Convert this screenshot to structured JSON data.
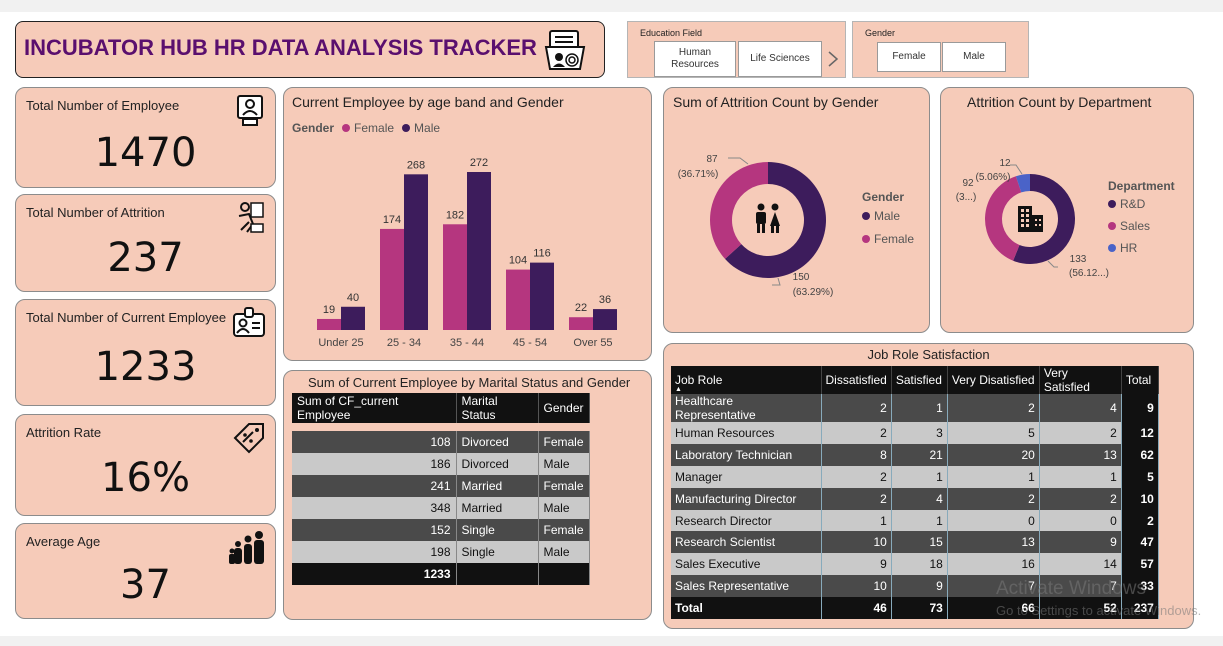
{
  "header": {
    "title": "INCUBATOR HUB HR DATA ANALYSIS TRACKER",
    "icon": "hr-folder-fingerprint-icon"
  },
  "slicers": {
    "education": {
      "title": "Education Field",
      "options": [
        "Human Resources",
        "Life Sciences"
      ],
      "more_icon": "chevron-right-icon"
    },
    "gender": {
      "title": "Gender",
      "options": [
        "Female",
        "Male"
      ]
    }
  },
  "kpis": {
    "total_employee": {
      "label": "Total Number of Employee",
      "value": "1470",
      "icon": "employee-badge-icon"
    },
    "total_attrition": {
      "label": "Total Number of Attrition",
      "value": "237",
      "icon": "leaving-person-icon"
    },
    "current_employee": {
      "label": "Total Number of Current Employee",
      "value": "1233",
      "icon": "id-card-icon"
    },
    "attrition_rate": {
      "label": "Attrition Rate",
      "value": "16%",
      "icon": "percent-tag-icon"
    },
    "average_age": {
      "label": "Average Age",
      "value": "37",
      "icon": "family-icon"
    }
  },
  "age_chart": {
    "title": "Current Employee by age band and Gender",
    "legend_title": "Gender",
    "legend": [
      "Female",
      "Male"
    ]
  },
  "gender_donut": {
    "title": "Sum of Attrition Count by Gender",
    "legend_title": "Gender",
    "legend": [
      "Male",
      "Female"
    ],
    "labels": {
      "female_value": "87",
      "female_pct": "(36.71%)",
      "male_value": "150",
      "male_pct": "(63.29%)"
    }
  },
  "dept_donut": {
    "title": "Attrition Count by Department",
    "legend_title": "Department",
    "legend": [
      "R&D",
      "Sales",
      "HR"
    ],
    "labels": {
      "hr_value": "12",
      "hr_pct": "(5.06%)",
      "sales_value": "92",
      "sales_pct": "(3...)",
      "rd_value": "133",
      "rd_pct": "(56.12...)"
    }
  },
  "marital_table": {
    "title": "Sum of Current Employee by Marital Status and Gender",
    "headers": [
      "Sum of CF_current Employee",
      "Marital Status",
      "Gender"
    ],
    "rows": [
      [
        "108",
        "Divorced",
        "Female"
      ],
      [
        "186",
        "Divorced",
        "Male"
      ],
      [
        "241",
        "Married",
        "Female"
      ],
      [
        "348",
        "Married",
        "Male"
      ],
      [
        "152",
        "Single",
        "Female"
      ],
      [
        "198",
        "Single",
        "Male"
      ]
    ],
    "total": "1233"
  },
  "job_table": {
    "title": "Job Role Satisfaction",
    "headers": [
      "Job Role",
      "Dissatisfied",
      "Satisfied",
      "Very Disatisfied",
      "Very Satisfied",
      "Total"
    ],
    "rows": [
      [
        "Healthcare Representative",
        "2",
        "1",
        "2",
        "4",
        "9"
      ],
      [
        "Human Resources",
        "2",
        "3",
        "5",
        "2",
        "12"
      ],
      [
        "Laboratory Technician",
        "8",
        "21",
        "20",
        "13",
        "62"
      ],
      [
        "Manager",
        "2",
        "1",
        "1",
        "1",
        "5"
      ],
      [
        "Manufacturing Director",
        "2",
        "4",
        "2",
        "2",
        "10"
      ],
      [
        "Research Director",
        "1",
        "1",
        "0",
        "0",
        "2"
      ],
      [
        "Research Scientist",
        "10",
        "15",
        "13",
        "9",
        "47"
      ],
      [
        "Sales Executive",
        "9",
        "18",
        "16",
        "14",
        "57"
      ],
      [
        "Sales Representative",
        "10",
        "9",
        "7",
        "7",
        "33"
      ]
    ],
    "total_row": [
      "Total",
      "46",
      "73",
      "66",
      "52",
      "237"
    ]
  },
  "watermark": {
    "line1": "Activate Windows",
    "line2": "Go to Settings to activate Windows."
  },
  "colors": {
    "card_bg": "#f6cbb9",
    "female": "#b5367f",
    "male": "#3d1c5c",
    "hr": "#4a63c8",
    "title": "#5a0f6e"
  },
  "chart_data": [
    {
      "type": "bar",
      "title": "Current Employee by age band and Gender",
      "categories": [
        "Under 25",
        "25 - 34",
        "35 - 44",
        "45 - 54",
        "Over 55"
      ],
      "series": [
        {
          "name": "Female",
          "values": [
            19,
            174,
            182,
            104,
            22
          ]
        },
        {
          "name": "Male",
          "values": [
            40,
            268,
            272,
            116,
            36
          ]
        }
      ],
      "ylim": [
        0,
        272
      ]
    },
    {
      "type": "pie",
      "title": "Sum of Attrition Count by Gender",
      "categories": [
        "Male",
        "Female"
      ],
      "values": [
        150,
        87
      ]
    },
    {
      "type": "pie",
      "title": "Attrition Count by Department",
      "categories": [
        "R&D",
        "Sales",
        "HR"
      ],
      "values": [
        133,
        92,
        12
      ]
    }
  ]
}
